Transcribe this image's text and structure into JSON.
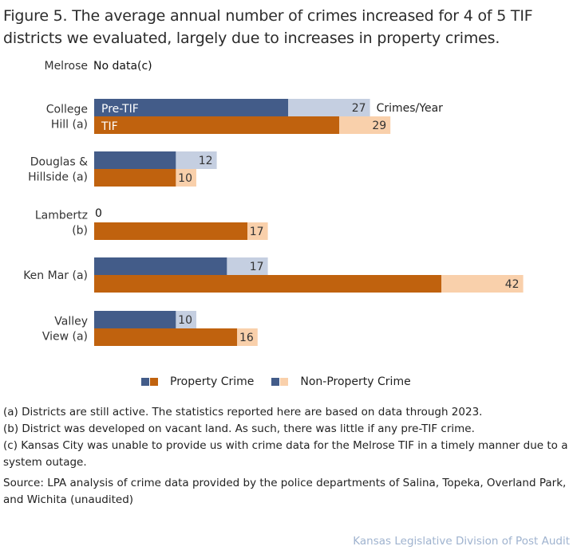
{
  "title": "Figure 5. The average annual number of crimes increased for 4 of 5 TIF districts we evaluated, largely due to increases in property crimes.",
  "chart_data": {
    "type": "bar",
    "orientation": "horizontal-stacked",
    "unit_label": "Crimes/Year",
    "series_labels": {
      "pre": "Pre-TIF",
      "tif": "TIF"
    },
    "categories": [
      {
        "name": [
          "Melrose"
        ],
        "note": "No data(c)",
        "pre": null,
        "tif": null
      },
      {
        "name": [
          "College",
          "Hill (a)"
        ],
        "pre": {
          "property": 19,
          "nonproperty": 8,
          "total": 27
        },
        "tif": {
          "property": 24,
          "nonproperty": 5,
          "total": 29
        }
      },
      {
        "name": [
          "Douglas &",
          "Hillside (a)"
        ],
        "pre": {
          "property": 8,
          "nonproperty": 4,
          "total": 12
        },
        "tif": {
          "property": 8,
          "nonproperty": 2,
          "total": 10
        }
      },
      {
        "name": [
          "Lambertz",
          "(b)"
        ],
        "pre": {
          "property": 0,
          "nonproperty": 0,
          "total": 0
        },
        "tif": {
          "property": 15,
          "nonproperty": 2,
          "total": 17
        }
      },
      {
        "name": [
          "Ken Mar (a)"
        ],
        "pre": {
          "property": 13,
          "nonproperty": 4,
          "total": 17
        },
        "tif": {
          "property": 34,
          "nonproperty": 8,
          "total": 42
        }
      },
      {
        "name": [
          "Valley",
          "View (a)"
        ],
        "pre": {
          "property": 8,
          "nonproperty": 2,
          "total": 10
        },
        "tif": {
          "property": 14,
          "nonproperty": 2,
          "total": 16
        }
      }
    ],
    "legend": [
      "Property Crime",
      "Non-Property Crime"
    ],
    "legend_position": "bottom",
    "colors": {
      "pre_property": "#435c89",
      "pre_nonproperty": "#c5cfe1",
      "tif_property": "#c0620e",
      "tif_nonproperty": "#f9d0ab"
    }
  },
  "notes": [
    "(a) Districts are still active. The statistics reported here are based on data through 2023.",
    "(b) District was developed on vacant land. As such, there was little if any pre-TIF crime.",
    "(c) Kansas City was unable to provide us with crime data for the Melrose TIF in a timely manner due to a system outage."
  ],
  "source": "Source: LPA analysis of crime data provided by the police departments of Salina, Topeka, Overland Park, and Wichita (unaudited)",
  "credit": "Kansas Legislative Division of Post Audit"
}
